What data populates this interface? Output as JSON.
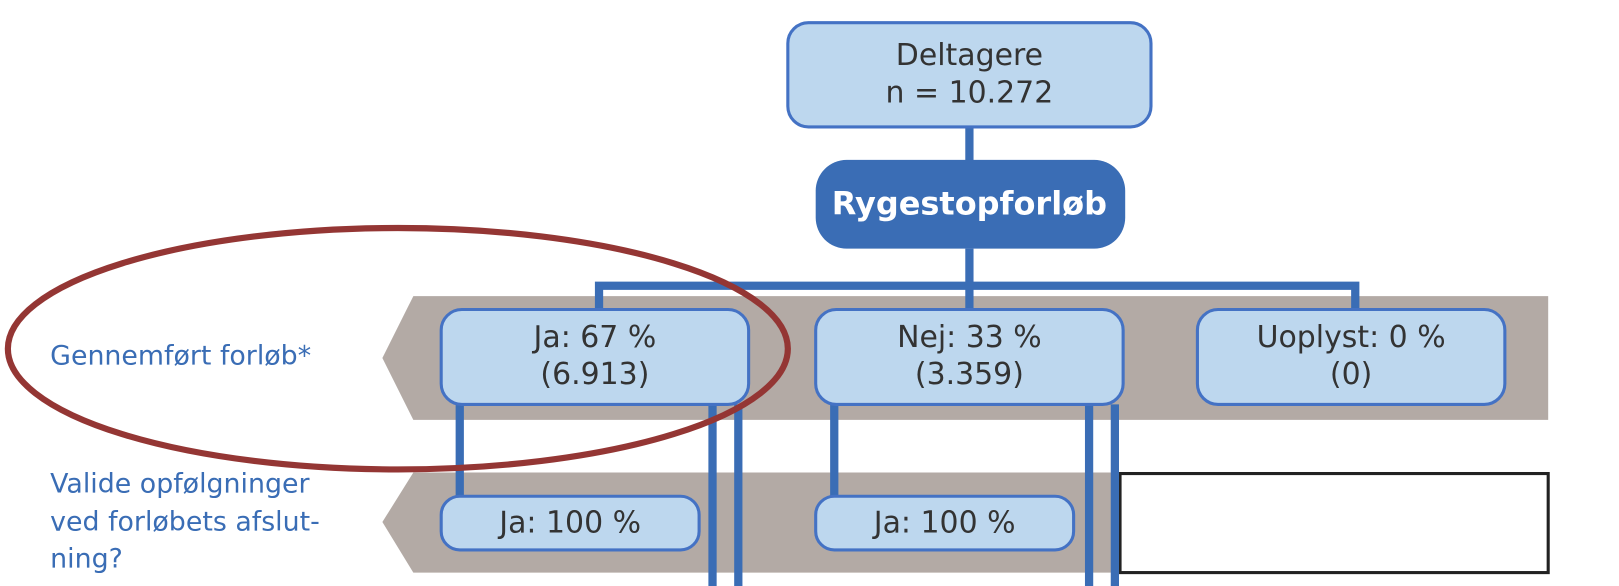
{
  "root": {
    "lines": [
      "Deltagere",
      "n = 10.272"
    ]
  },
  "process": "Rygestopforløb",
  "rows": [
    {
      "label_lines": [
        "Gennemført forløb*"
      ],
      "nodes": [
        {
          "lines": [
            "Ja: 67 %",
            "(6.913)"
          ]
        },
        {
          "lines": [
            "Nej: 33 %",
            "(3.359)"
          ]
        },
        {
          "lines": [
            "Uoplyst: 0 %",
            "(0)"
          ]
        }
      ]
    },
    {
      "label_lines": [
        "Valide opfølgninger",
        "ved forløbets afslut-",
        "ning?"
      ],
      "nodes": [
        {
          "lines": [
            "Ja: 100 %"
          ]
        },
        {
          "lines": [
            "Ja: 100 %"
          ]
        }
      ]
    }
  ]
}
